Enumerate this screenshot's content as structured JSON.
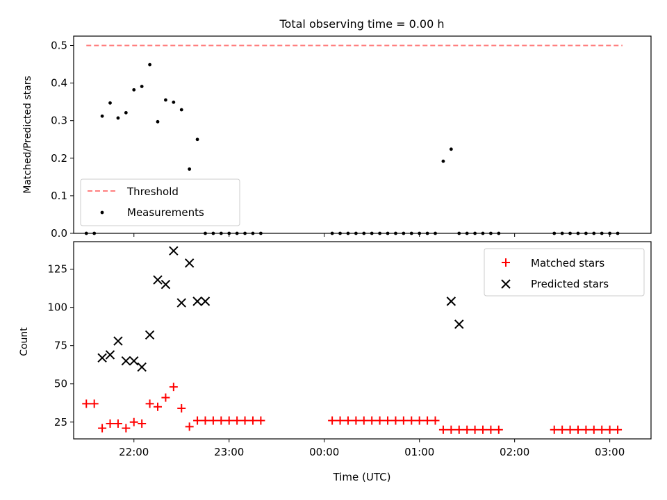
{
  "chart_data": [
    {
      "type": "scatter",
      "title": "Total observing time = 0.00 h",
      "ylabel": "Matched/Predicted stars",
      "xlim": [
        "21:22",
        "03:26"
      ],
      "ylim": [
        0,
        0.525
      ],
      "y_ticks": [
        "0.0",
        "0.1",
        "0.2",
        "0.3",
        "0.4",
        "0.5"
      ],
      "x_tick_positions": [
        "22:00",
        "23:00",
        "00:00",
        "01:00",
        "02:00",
        "03:00"
      ],
      "grid": false,
      "legend_position": "lower-left",
      "threshold": {
        "name": "Threshold",
        "value": 0.5,
        "x_start": "21:30",
        "x_end": "03:08",
        "color": "#ff7f7f",
        "style": "dashed"
      },
      "series": [
        {
          "name": "Measurements",
          "color": "#000000",
          "marker": "dot",
          "x": [
            "21:30",
            "21:35",
            "21:40",
            "21:45",
            "21:50",
            "21:55",
            "22:00",
            "22:05",
            "22:10",
            "22:15",
            "22:20",
            "22:25",
            "22:30",
            "22:35",
            "22:40",
            "22:45",
            "22:50",
            "22:55",
            "23:00",
            "23:05",
            "23:10",
            "23:15",
            "23:20",
            "00:05",
            "00:10",
            "00:15",
            "00:20",
            "00:25",
            "00:30",
            "00:35",
            "00:40",
            "00:45",
            "00:50",
            "00:55",
            "01:00",
            "01:05",
            "01:10",
            "01:15",
            "01:20",
            "01:25",
            "01:30",
            "01:35",
            "01:40",
            "01:45",
            "01:50",
            "02:25",
            "02:30",
            "02:35",
            "02:40",
            "02:45",
            "02:50",
            "02:55",
            "03:00",
            "03:05"
          ],
          "y": [
            0,
            0,
            0.312,
            0.347,
            0.307,
            0.321,
            0.382,
            0.391,
            0.449,
            0.297,
            0.355,
            0.349,
            0.329,
            0.171,
            0.25,
            0,
            0,
            0,
            0,
            0,
            0,
            0,
            0,
            0,
            0,
            0,
            0,
            0,
            0,
            0,
            0,
            0,
            0,
            0,
            0,
            0,
            0,
            0.192,
            0.224,
            0,
            0,
            0,
            0,
            0,
            0,
            0,
            0,
            0,
            0,
            0,
            0,
            0,
            0,
            0
          ]
        }
      ]
    },
    {
      "type": "scatter",
      "xlabel": "Time (UTC)",
      "ylabel": "Count",
      "xlim": [
        "21:22",
        "03:26"
      ],
      "ylim": [
        14,
        143
      ],
      "y_ticks": [
        "25",
        "50",
        "75",
        "100",
        "125"
      ],
      "x_ticks": [
        "22:00",
        "23:00",
        "00:00",
        "01:00",
        "02:00",
        "03:00"
      ],
      "grid": false,
      "legend_position": "upper-right",
      "series": [
        {
          "name": "Matched stars",
          "color": "#ff0000",
          "marker": "plus",
          "x": [
            "21:30",
            "21:35",
            "21:40",
            "21:45",
            "21:50",
            "21:55",
            "22:00",
            "22:05",
            "22:10",
            "22:15",
            "22:20",
            "22:25",
            "22:30",
            "22:35",
            "22:40",
            "22:45",
            "22:50",
            "22:55",
            "23:00",
            "23:05",
            "23:10",
            "23:15",
            "23:20",
            "00:05",
            "00:10",
            "00:15",
            "00:20",
            "00:25",
            "00:30",
            "00:35",
            "00:40",
            "00:45",
            "00:50",
            "00:55",
            "01:00",
            "01:05",
            "01:10",
            "01:15",
            "01:20",
            "01:25",
            "01:30",
            "01:35",
            "01:40",
            "01:45",
            "01:50",
            "02:25",
            "02:30",
            "02:35",
            "02:40",
            "02:45",
            "02:50",
            "02:55",
            "03:00",
            "03:05"
          ],
          "y": [
            37,
            37,
            21,
            24,
            24,
            21,
            25,
            24,
            37,
            35,
            41,
            48,
            34,
            22,
            26,
            26,
            26,
            26,
            26,
            26,
            26,
            26,
            26,
            26,
            26,
            26,
            26,
            26,
            26,
            26,
            26,
            26,
            26,
            26,
            26,
            26,
            26,
            20,
            20,
            20,
            20,
            20,
            20,
            20,
            20,
            20,
            20,
            20,
            20,
            20,
            20,
            20,
            20,
            20
          ]
        },
        {
          "name": "Predicted stars",
          "color": "#000000",
          "marker": "x",
          "x": [
            "21:40",
            "21:45",
            "21:50",
            "21:55",
            "22:00",
            "22:05",
            "22:10",
            "22:15",
            "22:20",
            "22:25",
            "22:30",
            "22:35",
            "22:40",
            "22:45",
            "01:20",
            "01:25"
          ],
          "y": [
            67,
            69,
            78,
            65,
            65,
            61,
            82,
            118,
            115,
            137,
            103,
            129,
            104,
            104,
            104,
            89
          ]
        }
      ]
    }
  ]
}
